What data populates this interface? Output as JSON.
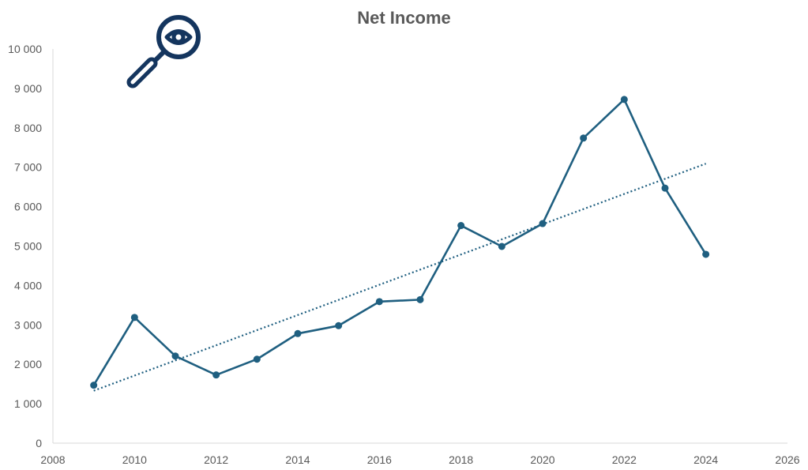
{
  "chart_data": {
    "type": "line",
    "title": "Net Income",
    "xlabel": "",
    "ylabel": "",
    "xlim": [
      2008,
      2026
    ],
    "ylim": [
      0,
      10000
    ],
    "x_ticks": [
      2008,
      2010,
      2012,
      2014,
      2016,
      2018,
      2020,
      2022,
      2024,
      2026
    ],
    "x_tick_labels": [
      "2008",
      "2010",
      "2012",
      "2014",
      "2016",
      "2018",
      "2020",
      "2022",
      "2024",
      "2026"
    ],
    "y_ticks": [
      0,
      1000,
      2000,
      3000,
      4000,
      5000,
      6000,
      7000,
      8000,
      9000,
      10000
    ],
    "y_tick_labels": [
      "0",
      "1 000",
      "2 000",
      "3 000",
      "4 000",
      "5 000",
      "6 000",
      "7 000",
      "8 000",
      "9 000",
      "10 000"
    ],
    "grid": false,
    "legend": "none",
    "series": [
      {
        "x": [
          2009,
          2010,
          2011,
          2012,
          2013,
          2014,
          2015,
          2016,
          2017,
          2018,
          2019,
          2020,
          2021,
          2022,
          2023,
          2024
        ],
        "values": [
          1470,
          3190,
          2210,
          1730,
          2130,
          2780,
          2980,
          3590,
          3640,
          5520,
          4990,
          5570,
          7740,
          8720,
          6470,
          4790
        ],
        "color": "#1f5f80"
      }
    ],
    "trendline": {
      "type": "linear",
      "style": "dotted",
      "color": "#1f5f80",
      "x": [
        2009,
        2024
      ],
      "y": [
        1330,
        7090
      ]
    }
  },
  "logo": {
    "icon": "magnifier-eye-icon",
    "color": "#14355e"
  }
}
